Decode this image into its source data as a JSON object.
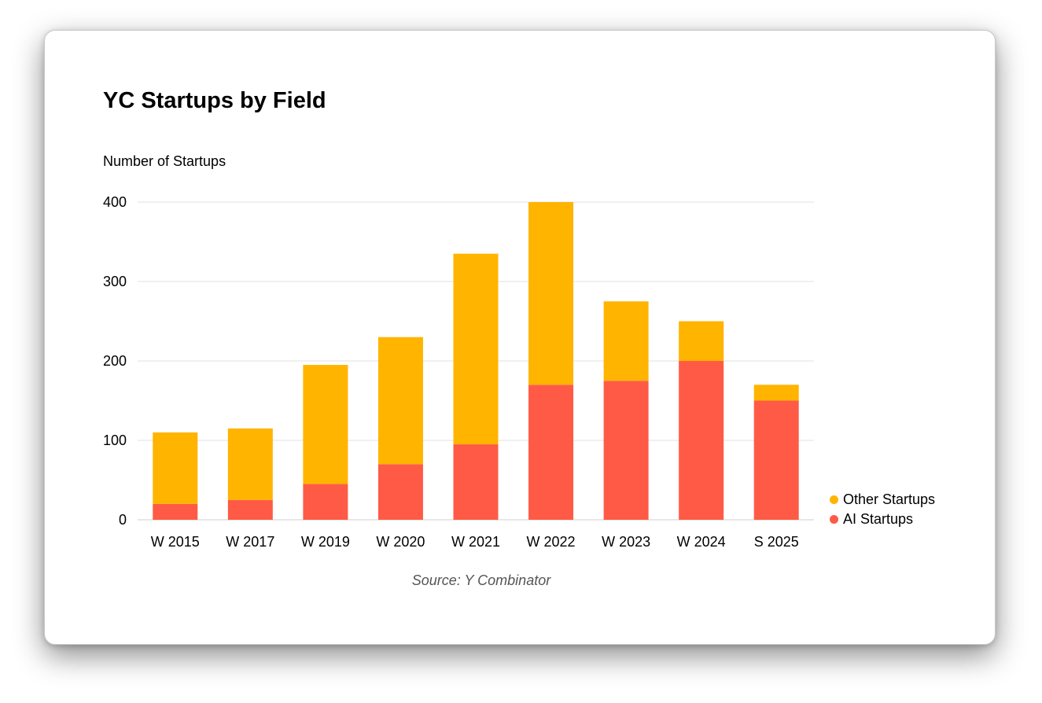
{
  "chart_data": {
    "type": "bar",
    "stacked": true,
    "title": "YC Startups by Field",
    "ylabel": "Number of Startups",
    "xlabel": "",
    "ylim": [
      0,
      400
    ],
    "yticks": [
      0,
      100,
      200,
      300,
      400
    ],
    "grid": true,
    "legend_position": "right",
    "categories": [
      "W 2015",
      "W 2017",
      "W 2019",
      "W 2020",
      "W 2021",
      "W 2022",
      "W 2023",
      "W 2024",
      "S 2025"
    ],
    "series": [
      {
        "name": "AI Startups",
        "color": "#FF5A45",
        "values": [
          20,
          25,
          45,
          70,
          95,
          170,
          175,
          200,
          150
        ]
      },
      {
        "name": "Other Startups",
        "color": "#FFB400",
        "values": [
          90,
          90,
          150,
          160,
          240,
          230,
          100,
          50,
          20
        ]
      }
    ],
    "legend": [
      {
        "name": "Other Startups",
        "color": "#FFB400"
      },
      {
        "name": "AI Startups",
        "color": "#FF5A45"
      }
    ],
    "source": "Source: Y Combinator"
  }
}
